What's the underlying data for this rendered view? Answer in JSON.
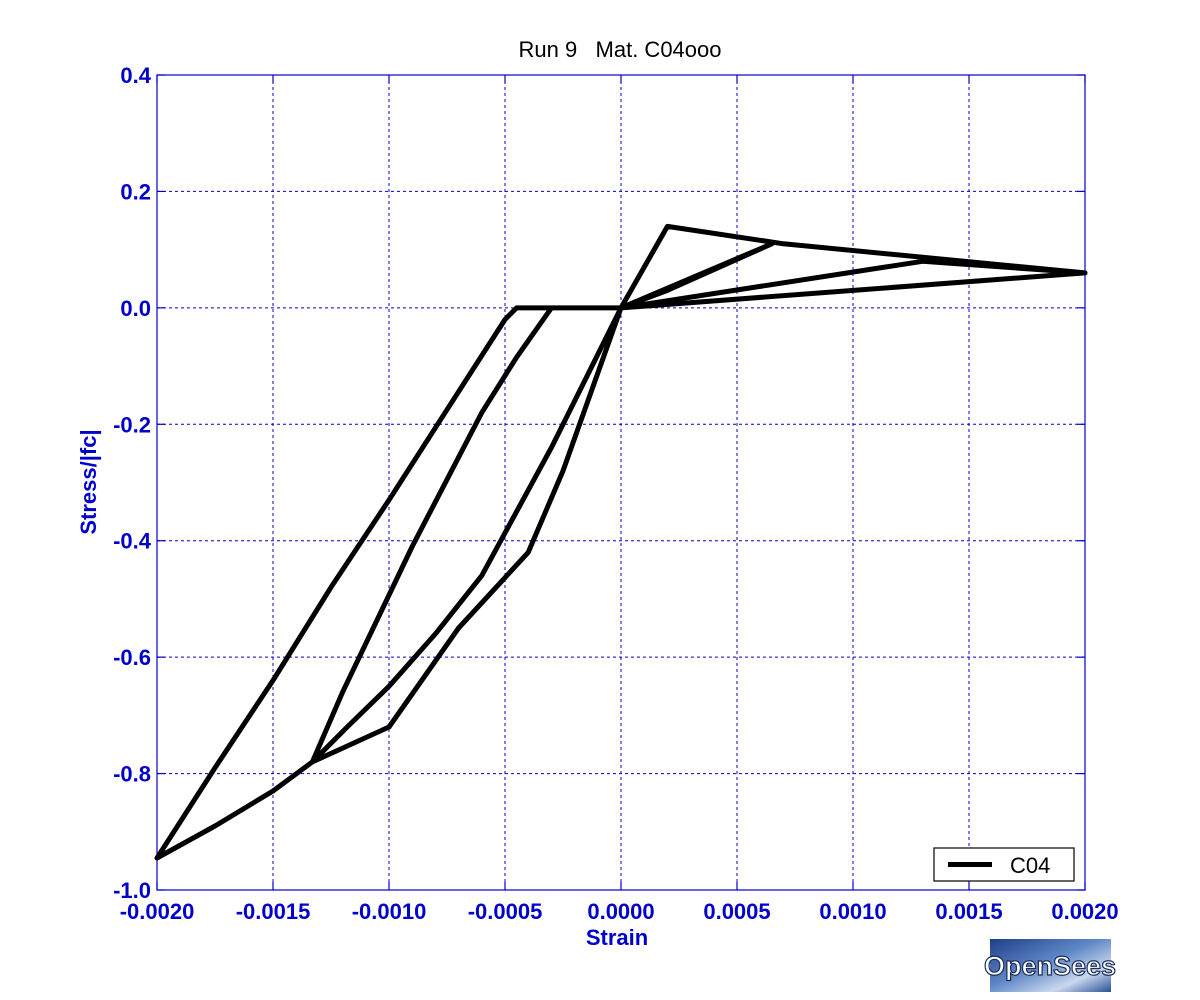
{
  "chart_data": {
    "type": "line",
    "title": "Run 9   Mat. C04ooo",
    "xlabel": "Strain",
    "ylabel": "Stress/|fc|",
    "xlim": [
      -0.002,
      0.002
    ],
    "ylim": [
      -1.0,
      0.4
    ],
    "xticks": [
      -0.002,
      -0.0015,
      -0.001,
      -0.0005,
      0.0,
      0.0005,
      0.001,
      0.0015,
      0.002
    ],
    "xtick_labels": [
      "-0.0020",
      "-0.0015",
      "-0.0010",
      "-0.0005",
      "0.0000",
      "0.0005",
      "0.0010",
      "0.0015",
      "0.0020"
    ],
    "yticks": [
      0.4,
      0.2,
      0.0,
      -0.2,
      -0.4,
      -0.6,
      -0.8,
      -1.0
    ],
    "ytick_labels": [
      "0.4",
      "0.2",
      "0.0",
      "-0.2",
      "-0.4",
      "-0.6",
      "-0.8",
      "-1.0"
    ],
    "grid": true,
    "legend_position": "bottom-right",
    "series": [
      {
        "name": "C04",
        "color": "#000000",
        "x": [
          0.0,
          0.0002,
          0.0007,
          0.002,
          0.0,
          -0.0003,
          -0.0006,
          -0.0008,
          -0.001,
          -0.00118,
          -0.00133,
          -0.0015,
          -0.00175,
          -0.002,
          -0.00175,
          -0.0015,
          -0.00125,
          -0.001,
          -0.00075,
          -0.0005,
          -0.00045,
          -0.0004,
          0.0,
          0.0002,
          0.00065,
          0.0,
          0.0013,
          0.002,
          0.0,
          -0.00025,
          -0.0004,
          -0.0007,
          -0.001,
          -0.00133,
          -0.0012,
          -0.0009,
          -0.0006,
          -0.00045,
          -0.0003,
          0.0
        ],
        "y": [
          0.0,
          0.14,
          0.11,
          0.06,
          0.0,
          -0.24,
          -0.46,
          -0.56,
          -0.65,
          -0.72,
          -0.78,
          -0.83,
          -0.89,
          -0.945,
          -0.79,
          -0.64,
          -0.48,
          -0.33,
          -0.175,
          -0.02,
          0.0,
          0.0,
          0.0,
          0.03,
          0.11,
          0.0,
          0.08,
          0.06,
          0.0,
          -0.28,
          -0.42,
          -0.55,
          -0.72,
          -0.78,
          -0.66,
          -0.41,
          -0.18,
          -0.085,
          0.0,
          0.0
        ]
      }
    ]
  },
  "logo": {
    "text": "OpenSees"
  }
}
